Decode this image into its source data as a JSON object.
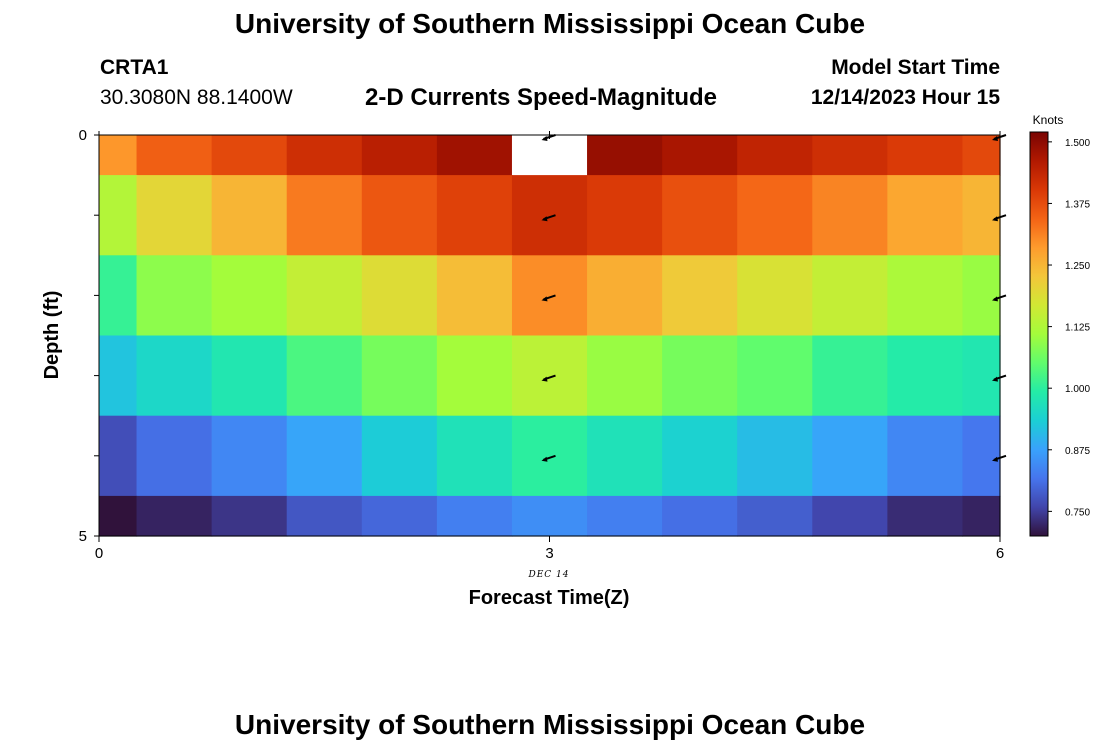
{
  "header": {
    "title": "University of Southern Mississippi Ocean Cube",
    "station": "CRTA1",
    "coords": "30.3080N  88.1400W",
    "subtitle": "2-D Currents Speed-Magnitude",
    "start_label": "Model Start Time",
    "start_time": "12/14/2023 Hour 15"
  },
  "footer": {
    "title": "University of Southern Mississippi Ocean Cube"
  },
  "chart_data": {
    "type": "heatmap",
    "xlabel": "Forecast Time(Z)",
    "ylabel": "Depth (ft)",
    "x_tick_labels": [
      "0",
      "3",
      "6"
    ],
    "y_tick_labels": [
      "0",
      "5"
    ],
    "date_label": "DEC 14",
    "xlim": [
      0,
      6
    ],
    "ylim": [
      0,
      5
    ],
    "x_centers": [
      0,
      0.5,
      1,
      1.5,
      2,
      2.5,
      3,
      3.5,
      4,
      4.5,
      5,
      5.5,
      6
    ],
    "depths": [
      0,
      1,
      2,
      3,
      4,
      5
    ],
    "values": [
      [
        1.29,
        1.35,
        1.38,
        1.42,
        1.45,
        1.48,
        null,
        1.49,
        1.47,
        1.44,
        1.42,
        1.4,
        1.38
      ],
      [
        1.13,
        1.2,
        1.25,
        1.32,
        1.36,
        1.39,
        1.42,
        1.4,
        1.37,
        1.34,
        1.31,
        1.27,
        1.25
      ],
      [
        1.01,
        1.09,
        1.11,
        1.15,
        1.19,
        1.24,
        1.3,
        1.26,
        1.22,
        1.18,
        1.15,
        1.12,
        1.1
      ],
      [
        0.92,
        0.95,
        0.98,
        1.03,
        1.07,
        1.11,
        1.14,
        1.1,
        1.07,
        1.05,
        1.01,
        0.99,
        0.98
      ],
      [
        0.77,
        0.81,
        0.84,
        0.88,
        0.93,
        0.97,
        1.0,
        0.97,
        0.94,
        0.91,
        0.88,
        0.84,
        0.82
      ],
      [
        0.7,
        0.72,
        0.74,
        0.78,
        0.8,
        0.83,
        0.85,
        0.83,
        0.81,
        0.79,
        0.76,
        0.73,
        0.72
      ]
    ],
    "arrows": [
      {
        "x": 3,
        "depth": 0
      },
      {
        "x": 3,
        "depth": 1
      },
      {
        "x": 3,
        "depth": 2
      },
      {
        "x": 3,
        "depth": 3
      },
      {
        "x": 3,
        "depth": 4
      },
      {
        "x": 6,
        "depth": 0
      },
      {
        "x": 6,
        "depth": 1
      },
      {
        "x": 6,
        "depth": 2
      },
      {
        "x": 6,
        "depth": 3
      },
      {
        "x": 6,
        "depth": 4
      }
    ],
    "colorbar": {
      "unit": "Knots",
      "min": 0.7,
      "max": 1.52,
      "tick_values": [
        0.75,
        0.875,
        1.0,
        1.125,
        1.25,
        1.375,
        1.5
      ],
      "tick_labels": [
        "0.750",
        "0.875",
        "1.000",
        "1.125",
        "1.250",
        "1.375",
        "1.500"
      ],
      "colors": [
        "#30123b",
        "#4145ab",
        "#4675ed",
        "#39a2fc",
        "#1bcfd4",
        "#24eca6",
        "#61fc6c",
        "#a4fc3b",
        "#d1e834",
        "#f3c63a",
        "#fe9b2d",
        "#f36315",
        "#d93806",
        "#b11901",
        "#7a0402"
      ]
    }
  }
}
